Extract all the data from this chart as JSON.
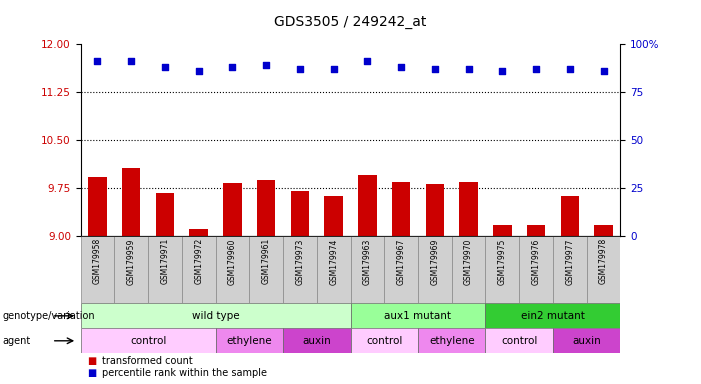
{
  "title": "GDS3505 / 249242_at",
  "samples": [
    "GSM179958",
    "GSM179959",
    "GSM179971",
    "GSM179972",
    "GSM179960",
    "GSM179961",
    "GSM179973",
    "GSM179974",
    "GSM179963",
    "GSM179967",
    "GSM179969",
    "GSM179970",
    "GSM179975",
    "GSM179976",
    "GSM179977",
    "GSM179978"
  ],
  "bar_values": [
    9.92,
    10.06,
    9.68,
    9.11,
    9.83,
    9.88,
    9.7,
    9.62,
    9.95,
    9.84,
    9.82,
    9.84,
    9.17,
    9.17,
    9.62,
    9.18
  ],
  "scatter_values": [
    91,
    91,
    88,
    86,
    88,
    89,
    87,
    87,
    91,
    88,
    87,
    87,
    86,
    87,
    87,
    86
  ],
  "bar_color": "#cc0000",
  "scatter_color": "#0000cc",
  "ylim_left": [
    9.0,
    12.0
  ],
  "ylim_right": [
    0,
    100
  ],
  "yticks_left": [
    9.0,
    9.75,
    10.5,
    11.25,
    12.0
  ],
  "yticks_right": [
    0,
    25,
    50,
    75,
    100
  ],
  "ytick_labels_right": [
    "0",
    "25",
    "50",
    "75",
    "100%"
  ],
  "gridlines": [
    9.75,
    10.5,
    11.25
  ],
  "genotype_groups": [
    {
      "label": "wild type",
      "start": 0,
      "end": 7,
      "color": "#ccffcc"
    },
    {
      "label": "aux1 mutant",
      "start": 8,
      "end": 11,
      "color": "#99ff99"
    },
    {
      "label": "ein2 mutant",
      "start": 12,
      "end": 15,
      "color": "#33cc33"
    }
  ],
  "agent_groups": [
    {
      "label": "control",
      "start": 0,
      "end": 3,
      "color": "#ffccff"
    },
    {
      "label": "ethylene",
      "start": 4,
      "end": 5,
      "color": "#ee88ee"
    },
    {
      "label": "auxin",
      "start": 6,
      "end": 7,
      "color": "#cc44cc"
    },
    {
      "label": "control",
      "start": 8,
      "end": 9,
      "color": "#ffccff"
    },
    {
      "label": "ethylene",
      "start": 10,
      "end": 11,
      "color": "#ee88ee"
    },
    {
      "label": "control",
      "start": 12,
      "end": 13,
      "color": "#ffccff"
    },
    {
      "label": "auxin",
      "start": 14,
      "end": 15,
      "color": "#cc44cc"
    }
  ],
  "legend_bar_label": "transformed count",
  "legend_scatter_label": "percentile rank within the sample",
  "label_row1": "genotype/variation",
  "label_row2": "agent",
  "sample_bg_color": "#d0d0d0",
  "background_color": "#ffffff"
}
